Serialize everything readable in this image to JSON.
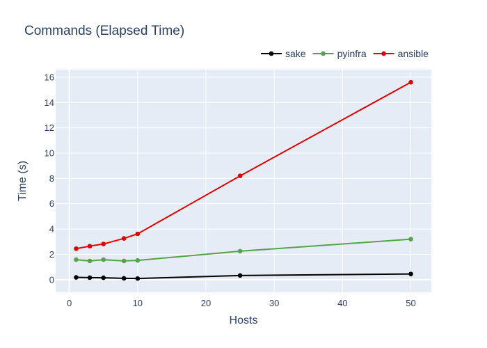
{
  "chart_data": {
    "type": "line",
    "title": "Commands (Elapsed Time)",
    "xlabel": "Hosts",
    "ylabel": "Time (s)",
    "xlim": [
      -2,
      53
    ],
    "ylim": [
      -1,
      16.6
    ],
    "xticks": [
      0,
      10,
      20,
      30,
      40,
      50
    ],
    "yticks": [
      0,
      2,
      4,
      6,
      8,
      10,
      12,
      14,
      16
    ],
    "grid": true,
    "legend_position": "top-right",
    "x": [
      1,
      3,
      5,
      8,
      10,
      25,
      50
    ],
    "series": [
      {
        "name": "sake",
        "color": "#000000",
        "values": [
          0.18,
          0.16,
          0.15,
          0.11,
          0.09,
          0.33,
          0.45
        ]
      },
      {
        "name": "pyinfra",
        "color": "#54a24b",
        "values": [
          1.58,
          1.48,
          1.58,
          1.48,
          1.52,
          2.25,
          3.2
        ]
      },
      {
        "name": "ansible",
        "color": "#e00000",
        "values": [
          2.45,
          2.65,
          2.82,
          3.26,
          3.62,
          8.2,
          15.6
        ]
      }
    ]
  },
  "style": {
    "plot_bg": "#e5ecf6",
    "grid_color": "#ffffff",
    "text_color": "#2a3f5f"
  }
}
